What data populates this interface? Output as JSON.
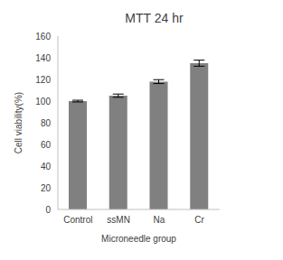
{
  "chart_data": {
    "type": "bar",
    "title": "MTT 24 hr",
    "x_label": "Microneedle group",
    "y_label": "Cell viability(%)",
    "categories": [
      "Control",
      "ssMN",
      "Na",
      "Cr"
    ],
    "values": [
      100,
      105,
      118,
      135
    ],
    "errors": [
      0.8,
      1.5,
      1.8,
      2.8
    ],
    "color": "#808080",
    "ylim": [
      0,
      160
    ],
    "yticks": [
      0,
      20,
      40,
      60,
      80,
      100,
      120,
      140,
      160
    ],
    "grid": false
  }
}
